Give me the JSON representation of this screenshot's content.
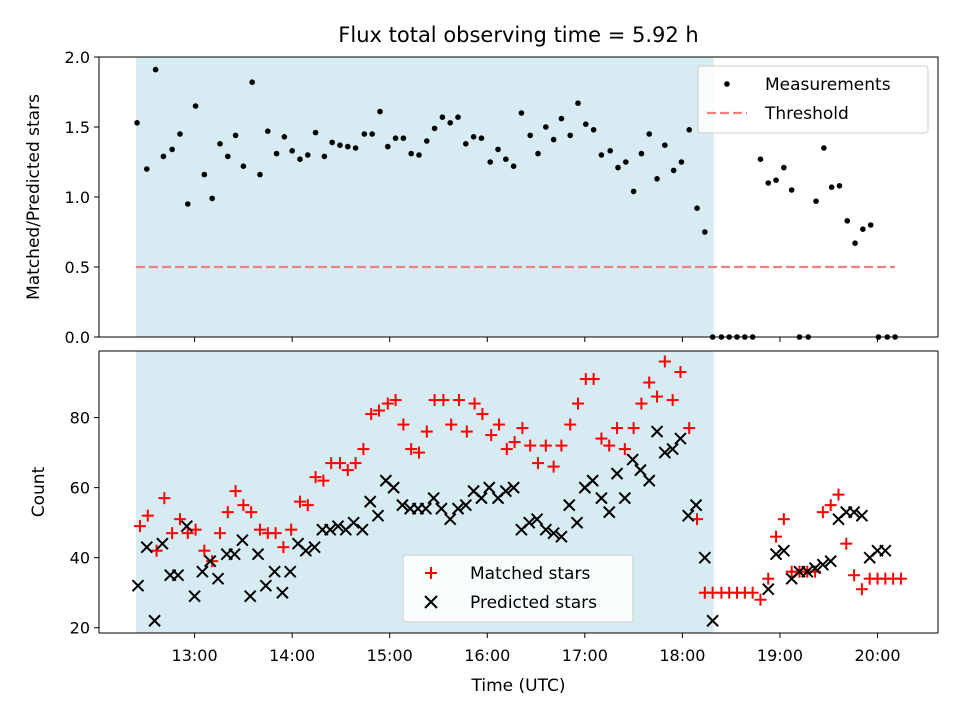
{
  "chart_data": [
    {
      "type": "scatter",
      "title": "Flux total observing time = 5.92 h",
      "xlabel": "",
      "ylabel": "Matched/Predicted stars",
      "ylim": [
        0,
        2.0
      ],
      "yticks": [
        0.0,
        0.5,
        1.0,
        1.5,
        2.0
      ],
      "ytick_labels": [
        "0.0",
        "0.5",
        "1.0",
        "1.5",
        "2.0"
      ],
      "xlim_hours": [
        12.02,
        20.62
      ],
      "xticks_hours": [
        13,
        14,
        15,
        16,
        17,
        18,
        19,
        20
      ],
      "xtick_labels": [],
      "shaded_span_hours": [
        12.4,
        18.32
      ],
      "shade_color": "#add8e6",
      "legend": {
        "position": "top-right",
        "entries": [
          "Measurements",
          "Threshold"
        ]
      },
      "threshold": {
        "name": "Threshold",
        "y": 0.5,
        "x_range_hours": [
          12.4,
          20.18
        ],
        "color": "#f08080"
      },
      "series": [
        {
          "name": "Measurements",
          "color": "#000000",
          "x_hours": [
            12.41,
            12.51,
            12.6,
            12.68,
            12.77,
            12.85,
            12.93,
            13.01,
            13.1,
            13.18,
            13.26,
            13.34,
            13.42,
            13.5,
            13.59,
            13.67,
            13.75,
            13.84,
            13.92,
            14.0,
            14.08,
            14.16,
            14.24,
            14.33,
            14.41,
            14.49,
            14.57,
            14.65,
            14.74,
            14.82,
            14.9,
            14.98,
            15.06,
            15.14,
            15.22,
            15.3,
            15.38,
            15.46,
            15.54,
            15.62,
            15.7,
            15.78,
            15.86,
            15.94,
            16.03,
            16.11,
            16.19,
            16.27,
            16.35,
            16.44,
            16.52,
            16.6,
            16.68,
            16.76,
            16.85,
            16.93,
            17.01,
            17.09,
            17.17,
            17.26,
            17.34,
            17.42,
            17.5,
            17.58,
            17.66,
            17.74,
            17.82,
            17.91,
            17.99,
            18.07,
            18.15,
            18.23,
            18.31,
            18.4,
            18.48,
            18.56,
            18.64,
            18.72,
            18.8,
            18.88,
            18.96,
            19.04,
            19.12,
            19.2,
            19.29,
            19.37,
            19.45,
            19.53,
            19.61,
            19.69,
            19.77,
            19.85,
            19.93,
            20.01,
            20.1,
            20.18
          ],
          "y": [
            1.53,
            1.2,
            1.91,
            1.29,
            1.34,
            1.45,
            0.95,
            1.65,
            1.16,
            0.99,
            1.38,
            1.29,
            1.44,
            1.22,
            1.82,
            1.16,
            1.47,
            1.31,
            1.43,
            1.33,
            1.27,
            1.3,
            1.46,
            1.29,
            1.39,
            1.37,
            1.36,
            1.35,
            1.45,
            1.45,
            1.61,
            1.36,
            1.42,
            1.42,
            1.31,
            1.3,
            1.4,
            1.49,
            1.57,
            1.53,
            1.57,
            1.38,
            1.43,
            1.42,
            1.25,
            1.34,
            1.27,
            1.22,
            1.6,
            1.44,
            1.31,
            1.5,
            1.41,
            1.56,
            1.44,
            1.67,
            1.52,
            1.48,
            1.3,
            1.33,
            1.21,
            1.25,
            1.04,
            1.31,
            1.45,
            1.13,
            1.37,
            1.19,
            1.25,
            1.48,
            0.92,
            0.75,
            0.0,
            0.0,
            0.0,
            0.0,
            0.0,
            0.0,
            1.27,
            1.1,
            1.12,
            1.21,
            1.05,
            0.0,
            0.0,
            0.97,
            1.35,
            1.07,
            1.08,
            0.83,
            0.67,
            0.77,
            0.8,
            0.0,
            0.0,
            0.0
          ]
        }
      ]
    },
    {
      "type": "scatter",
      "title": "",
      "xlabel": "Time (UTC)",
      "ylabel": "Count",
      "ylim": [
        18.5,
        99
      ],
      "yticks": [
        20,
        40,
        60,
        80
      ],
      "ytick_labels": [
        "20",
        "40",
        "60",
        "80"
      ],
      "xlim_hours": [
        12.02,
        20.62
      ],
      "xticks_hours": [
        13,
        14,
        15,
        16,
        17,
        18,
        19,
        20
      ],
      "xtick_labels": [
        "13:00",
        "14:00",
        "15:00",
        "16:00",
        "17:00",
        "18:00",
        "19:00",
        "20:00"
      ],
      "shaded_span_hours": [
        12.4,
        18.32
      ],
      "shade_color": "#add8e6",
      "legend": {
        "position": "lower-center",
        "entries": [
          "Matched stars",
          "Predicted stars"
        ]
      },
      "series": [
        {
          "name": "Matched stars",
          "marker": "plus",
          "color": "#ff0000",
          "x_hours": [
            12.44,
            12.52,
            12.61,
            12.69,
            12.77,
            12.85,
            12.93,
            13.01,
            13.1,
            13.18,
            13.26,
            13.34,
            13.42,
            13.5,
            13.58,
            13.67,
            13.75,
            13.83,
            13.91,
            13.99,
            14.08,
            14.16,
            14.24,
            14.32,
            14.4,
            14.49,
            14.57,
            14.65,
            14.73,
            14.81,
            14.89,
            14.98,
            15.06,
            15.14,
            15.22,
            15.3,
            15.38,
            15.46,
            15.55,
            15.63,
            15.71,
            15.79,
            15.87,
            15.95,
            16.04,
            16.12,
            16.2,
            16.28,
            16.36,
            16.44,
            16.52,
            16.6,
            16.68,
            16.76,
            16.85,
            16.93,
            17.01,
            17.09,
            17.17,
            17.25,
            17.33,
            17.41,
            17.5,
            17.58,
            17.66,
            17.74,
            17.82,
            17.9,
            17.98,
            18.07,
            18.15,
            18.23,
            18.31,
            18.4,
            18.48,
            18.56,
            18.64,
            18.72,
            18.8,
            18.88,
            18.96,
            19.04,
            19.12,
            19.2,
            19.28,
            19.36,
            19.44,
            19.52,
            19.6,
            19.68,
            19.76,
            19.84,
            19.92,
            20.0,
            20.08,
            20.16,
            20.24
          ],
          "y": [
            49,
            52,
            42,
            57,
            47,
            51,
            47,
            48,
            42,
            39,
            47,
            53,
            59,
            55,
            53,
            48,
            47,
            47,
            43,
            48,
            56,
            55,
            63,
            62,
            67,
            67,
            65,
            67,
            71,
            81,
            82,
            84,
            85,
            78,
            71,
            70,
            76,
            85,
            85,
            78,
            85,
            76,
            84,
            81,
            75,
            78,
            71,
            73,
            77,
            72,
            67,
            72,
            66,
            72,
            78,
            84,
            91,
            91,
            74,
            72,
            77,
            71,
            77,
            84,
            90,
            86,
            96,
            85,
            93,
            77,
            51,
            30,
            30,
            30,
            30,
            30,
            30,
            30,
            28,
            34,
            46,
            51,
            36,
            36,
            36,
            36,
            53,
            55,
            58,
            44,
            35,
            31,
            34,
            34,
            34,
            34,
            34
          ]
        },
        {
          "name": "Predicted stars",
          "marker": "x",
          "color": "#000000",
          "x_hours": [
            12.42,
            12.51,
            12.59,
            12.67,
            12.75,
            12.83,
            12.92,
            13.0,
            13.08,
            13.16,
            13.24,
            13.33,
            13.41,
            13.49,
            13.57,
            13.65,
            13.73,
            13.82,
            13.9,
            13.98,
            14.06,
            14.14,
            14.23,
            14.31,
            14.39,
            14.47,
            14.55,
            14.63,
            14.72,
            14.8,
            14.88,
            14.96,
            15.04,
            15.13,
            15.21,
            15.29,
            15.37,
            15.45,
            15.53,
            15.62,
            15.7,
            15.78,
            15.86,
            15.94,
            16.02,
            16.11,
            16.19,
            16.27,
            16.35,
            16.43,
            16.51,
            16.6,
            16.68,
            16.76,
            16.84,
            16.92,
            17.0,
            17.08,
            17.17,
            17.25,
            17.33,
            17.41,
            17.49,
            17.57,
            17.66,
            17.74,
            17.82,
            17.9,
            17.98,
            18.06,
            18.14,
            18.23,
            18.31,
            18.88,
            18.96,
            19.04,
            19.12,
            19.2,
            19.28,
            19.36,
            19.44,
            19.52,
            19.6,
            19.68,
            19.76,
            19.84,
            19.92,
            20.0,
            20.08
          ],
          "y": [
            32,
            43,
            22,
            44,
            35,
            35,
            49,
            29,
            36,
            39,
            34,
            41,
            41,
            45,
            29,
            41,
            32,
            36,
            30,
            36,
            44,
            42,
            43,
            48,
            48,
            49,
            48,
            50,
            48,
            56,
            52,
            62,
            60,
            55,
            54,
            54,
            54,
            57,
            54,
            51,
            54,
            55,
            59,
            57,
            60,
            57,
            59,
            60,
            48,
            50,
            51,
            48,
            47,
            46,
            55,
            50,
            60,
            62,
            57,
            53,
            64,
            57,
            68,
            65,
            62,
            76,
            70,
            71,
            74,
            52,
            55,
            40,
            22,
            31,
            41,
            42,
            34,
            36,
            36,
            37,
            38,
            39,
            51,
            53,
            53,
            52,
            40,
            42,
            42
          ]
        }
      ]
    }
  ]
}
